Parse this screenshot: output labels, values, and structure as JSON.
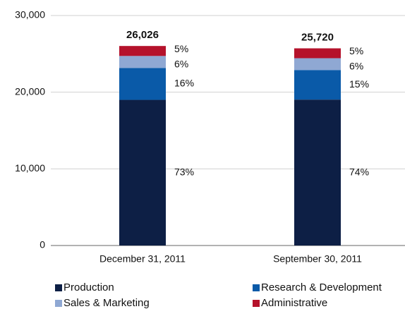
{
  "chart_data": {
    "type": "stacked-bar",
    "categories": [
      "December 31, 2011",
      "September 30, 2011"
    ],
    "series": [
      {
        "name": "Production",
        "color": "#0d1f45",
        "values": [
          18999,
          19033
        ],
        "percent_labels": [
          "73%",
          "74%"
        ]
      },
      {
        "name": "Research & Development",
        "color": "#0a5aa8",
        "values": [
          4164,
          3858
        ],
        "percent_labels": [
          "16%",
          "15%"
        ]
      },
      {
        "name": "Sales & Marketing",
        "color": "#8fa8d3",
        "values": [
          1562,
          1543
        ],
        "percent_labels": [
          "6%",
          "6%"
        ]
      },
      {
        "name": "Administrative",
        "color": "#b5122b",
        "values": [
          1301,
          1286
        ],
        "percent_labels": [
          "5%",
          "5%"
        ]
      }
    ],
    "totals": [
      26026,
      25720
    ],
    "total_labels": [
      "26,026",
      "25,720"
    ],
    "ylim": [
      0,
      30000
    ],
    "yticks": [
      0,
      {
        "value": 10000,
        "label": "10,000"
      },
      {
        "value": 20000,
        "label": "20,000"
      },
      {
        "value": 30000,
        "label": "30,000"
      }
    ],
    "grid": true,
    "legend": "bottom"
  }
}
